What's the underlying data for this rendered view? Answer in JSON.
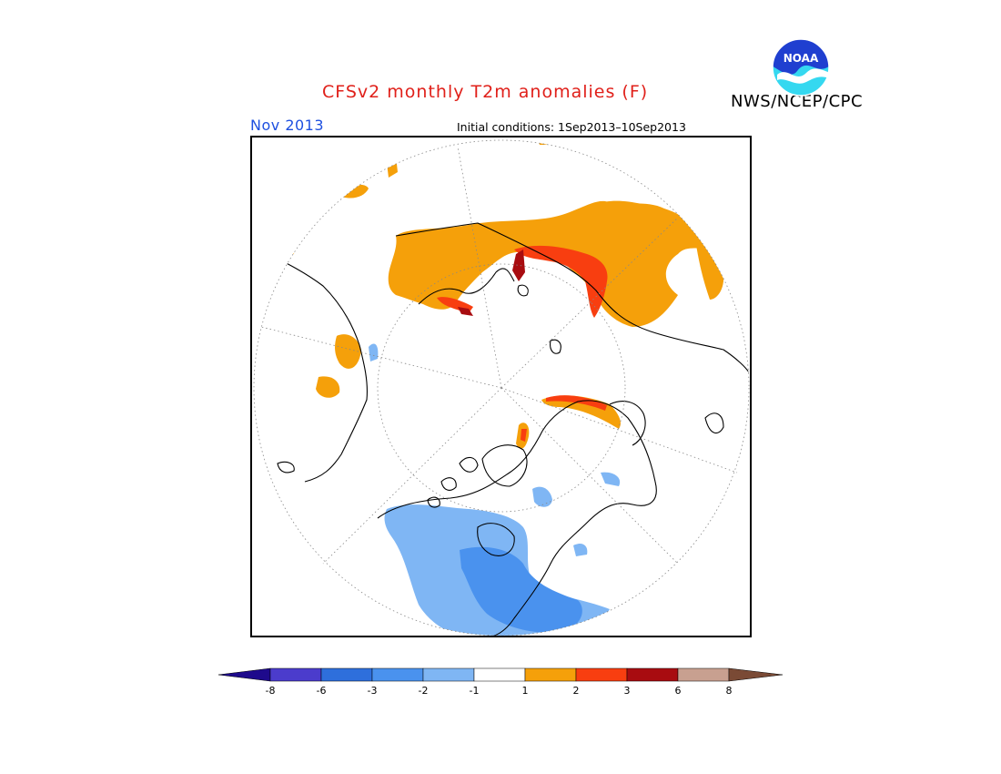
{
  "title": "CFSv2 monthly T2m anomalies (F)",
  "agency": "NWS/NCEP/CPC",
  "valid_month": "Nov 2013",
  "initial_conditions": "Initial conditions: 1Sep2013–10Sep2013",
  "logo": {
    "icon": "noaa-logo-icon",
    "text": "NOAA",
    "colors": {
      "top": "#1f3fd0",
      "bottom": "#35d8f0"
    }
  },
  "map": {
    "projection": "north-polar-stereographic",
    "grid": "dotted",
    "frame_color": "#000000"
  },
  "colorbar": {
    "levels": [
      "-8",
      "-6",
      "-3",
      "-2",
      "-1",
      "1",
      "2",
      "3",
      "6",
      "8"
    ],
    "colors": [
      "#1e0a8c",
      "#4b3ccc",
      "#2e6fdc",
      "#4a92ee",
      "#7fb6f4",
      "#ffffff",
      "#f5a00a",
      "#f83e10",
      "#a80c10",
      "#c8a090",
      "#7a4a35"
    ]
  }
}
